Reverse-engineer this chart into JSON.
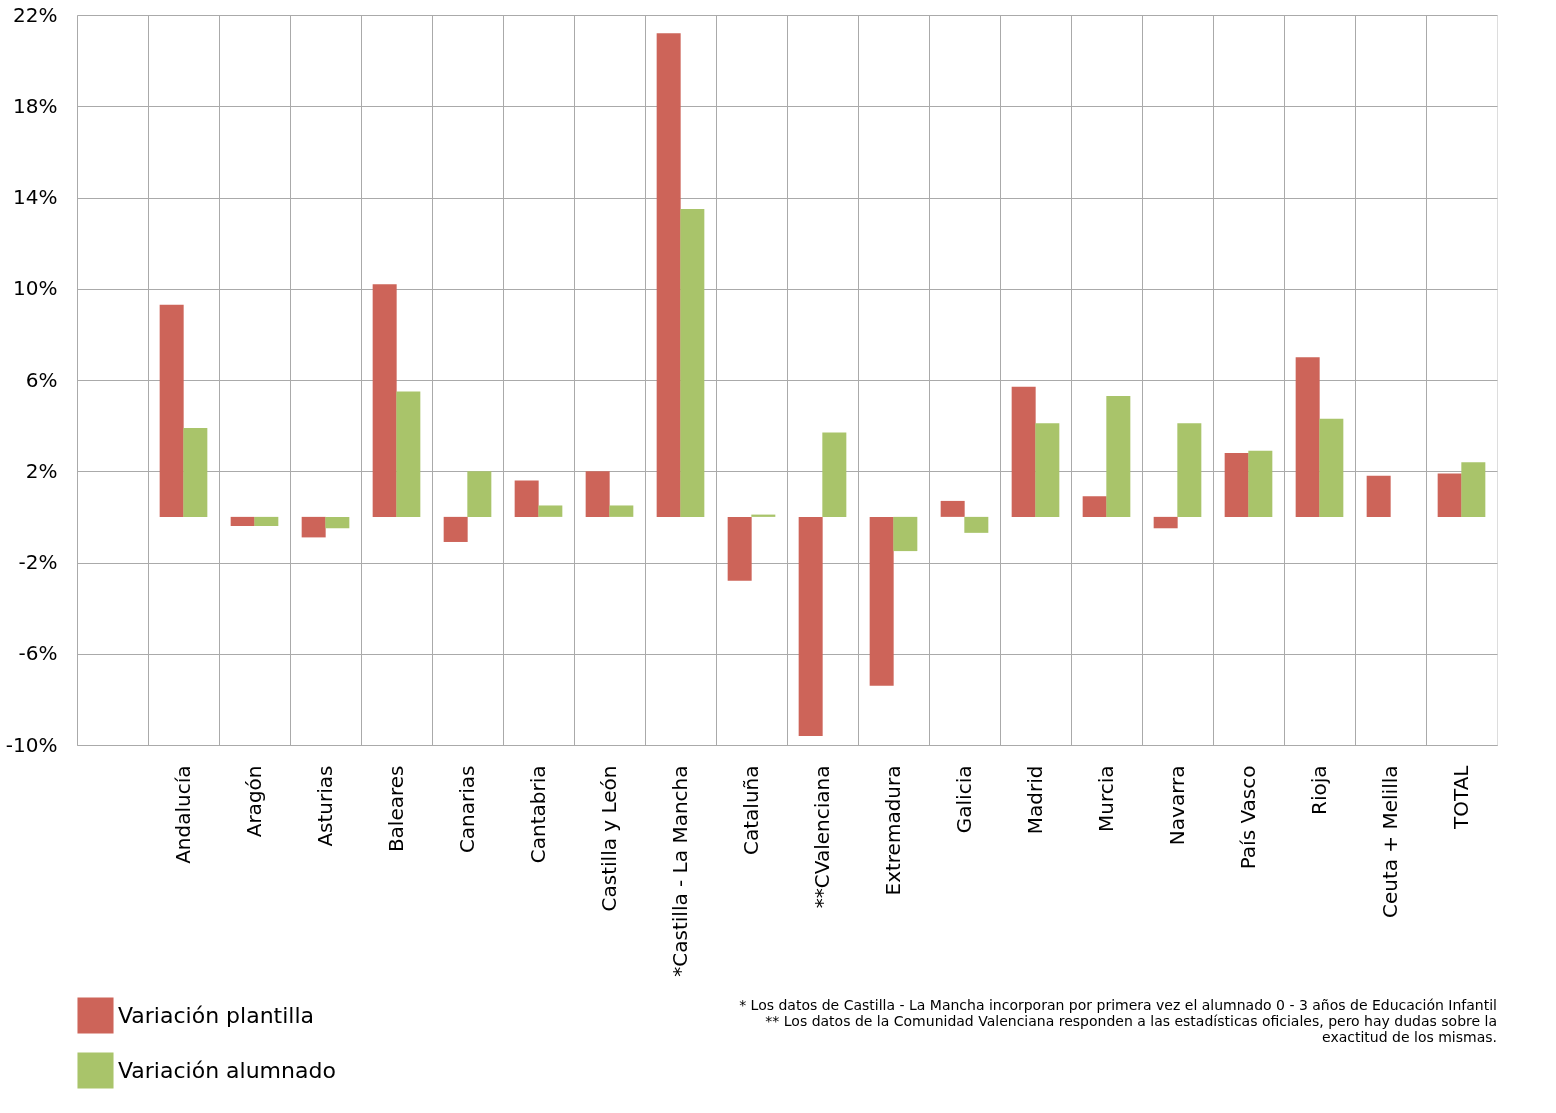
{
  "chart_data": {
    "type": "bar",
    "categories": [
      null,
      "Andalucía",
      "Aragón",
      "Asturias",
      "Baleares",
      "Canarias",
      "Cantabria",
      "Castilla y León",
      "*Castilla - La Mancha",
      "Cataluña",
      "**CValenciana",
      "Extremadura",
      "Galicia",
      "Madrid",
      "Murcia",
      "Navarra",
      "País Vasco",
      "Rioja",
      "Ceuta + Melilla",
      "TOTAL"
    ],
    "series": [
      {
        "name": "Variación plantilla",
        "color": "#cd6459",
        "values": [
          null,
          9.3,
          -0.4,
          -0.9,
          10.2,
          -1.1,
          1.6,
          2.0,
          21.2,
          -2.8,
          -9.6,
          -7.4,
          0.7,
          5.7,
          0.9,
          -0.5,
          2.8,
          7.0,
          1.8,
          1.9
        ]
      },
      {
        "name": "Variación alumnado",
        "color": "#a9c46a",
        "values": [
          null,
          3.9,
          -0.4,
          -0.5,
          5.5,
          2.0,
          0.5,
          0.5,
          13.5,
          0.1,
          3.7,
          -1.5,
          -0.7,
          4.1,
          5.3,
          4.1,
          2.9,
          4.3,
          0.0,
          2.4
        ]
      }
    ],
    "ylim": [
      -10,
      22
    ],
    "yticks": [
      {
        "value": -10,
        "label": "-10%"
      },
      {
        "value": -6,
        "label": "-6%"
      },
      {
        "value": -2,
        "label": "-2%"
      },
      {
        "value": 2,
        "label": "2%"
      },
      {
        "value": 6,
        "label": "6%"
      },
      {
        "value": 10,
        "label": "10%"
      },
      {
        "value": 14,
        "label": "14%"
      },
      {
        "value": 18,
        "label": "18%"
      },
      {
        "value": 22,
        "label": "22%"
      }
    ],
    "grid": true,
    "legend": "bottom left",
    "annotations": [
      "* Los datos de Castilla - La Mancha incorporan por primera vez el alumnado 0 - 3 años de Educación Infantil",
      "** Los datos de la Comunidad Valenciana responden a las estadísticas oficiales, pero hay dudas sobre la exactitud de los mismas."
    ]
  }
}
